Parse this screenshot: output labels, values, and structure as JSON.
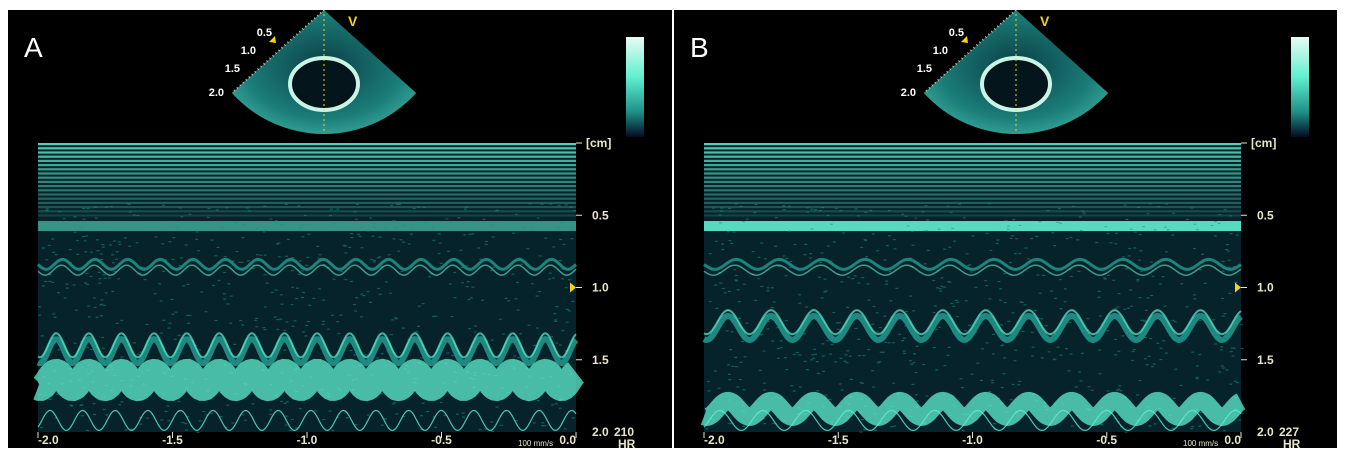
{
  "panels": [
    {
      "letter": "A",
      "depth_unit": "[cm]",
      "depth_ticks": [
        "0.5",
        "1.0",
        "1.5"
      ],
      "depth_bottom": "2.0",
      "hr_value": "210",
      "hr_label": "HR",
      "time_ticks": [
        "-2.0",
        "-1.5",
        "-1.0",
        "-0.5",
        "0.0"
      ],
      "sweep_speed": "100 mm/s",
      "sector_depths": [
        "0.5",
        "1.0",
        "1.5",
        "2.0"
      ],
      "sector_marker": "V",
      "cycles": 16.5,
      "chamber_level": 0.72
    },
    {
      "letter": "B",
      "depth_unit": "[cm]",
      "depth_ticks": [
        "0.5",
        "1.0",
        "1.5"
      ],
      "depth_bottom": "2.0",
      "hr_value": "227",
      "hr_label": "HR",
      "time_ticks": [
        "-2.0",
        "-1.5",
        "-1.0",
        "-0.5",
        "0.0"
      ],
      "sweep_speed": "100 mm/s",
      "sector_depths": [
        "0.5",
        "1.0",
        "1.5",
        "2.0"
      ],
      "sector_marker": "V",
      "cycles": 12.5,
      "chamber_level": 0.82
    }
  ],
  "colors": {
    "background": "#000000",
    "tissue_bright": "#5ff0d0",
    "tissue_mid": "#1f8f86",
    "tissue_dark": "#06222a",
    "labels": "#e8e6c8",
    "marker": "#f2d21a"
  }
}
